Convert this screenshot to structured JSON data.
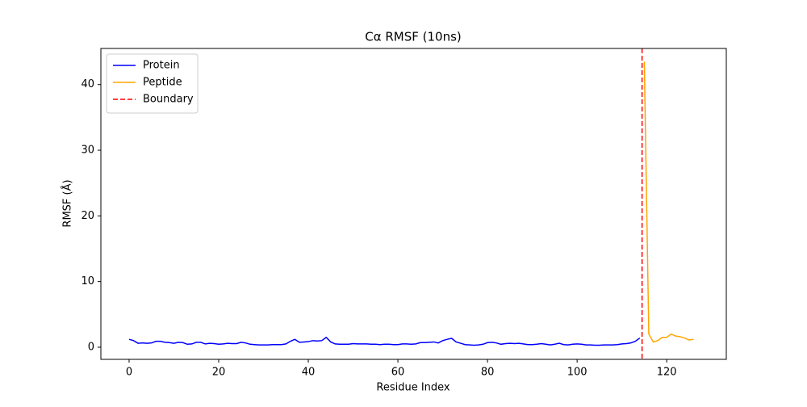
{
  "chart_data": {
    "type": "line",
    "title": "Cα RMSF (10ns)",
    "xlabel": "Residue Index",
    "ylabel": "RMSF (Å)",
    "xlim": [
      -6.3,
      133.3
    ],
    "xticks": [
      0,
      20,
      40,
      60,
      80,
      100,
      120
    ],
    "ylim": [
      -1.85,
      45.5
    ],
    "yticks": [
      0,
      10,
      20,
      30,
      40
    ],
    "legend": "upper left",
    "grid": false,
    "series": [
      {
        "name": "Protein",
        "color": "#0000ff",
        "x": [
          0,
          1,
          2,
          3,
          4,
          5,
          6,
          7,
          8,
          9,
          10,
          11,
          12,
          13,
          14,
          15,
          16,
          17,
          18,
          19,
          20,
          21,
          22,
          23,
          24,
          25,
          26,
          27,
          28,
          29,
          30,
          31,
          32,
          33,
          34,
          35,
          36,
          37,
          38,
          39,
          40,
          41,
          42,
          43,
          44,
          45,
          46,
          47,
          48,
          49,
          50,
          51,
          52,
          53,
          54,
          55,
          56,
          57,
          58,
          59,
          60,
          61,
          62,
          63,
          64,
          65,
          66,
          67,
          68,
          69,
          70,
          71,
          72,
          73,
          74,
          75,
          76,
          77,
          78,
          79,
          80,
          81,
          82,
          83,
          84,
          85,
          86,
          87,
          88,
          89,
          90,
          91,
          92,
          93,
          94,
          95,
          96,
          97,
          98,
          99,
          100,
          101,
          102,
          103,
          104,
          105,
          106,
          107,
          108,
          109,
          110,
          111,
          112,
          113,
          114
        ],
        "values": [
          1.2,
          1.0,
          0.6,
          0.65,
          0.6,
          0.65,
          0.9,
          0.9,
          0.75,
          0.7,
          0.6,
          0.75,
          0.7,
          0.45,
          0.5,
          0.75,
          0.75,
          0.5,
          0.6,
          0.55,
          0.45,
          0.5,
          0.6,
          0.55,
          0.55,
          0.75,
          0.65,
          0.45,
          0.4,
          0.35,
          0.35,
          0.35,
          0.4,
          0.4,
          0.4,
          0.5,
          0.9,
          1.2,
          0.75,
          0.8,
          0.85,
          1.0,
          0.95,
          1.0,
          1.5,
          0.8,
          0.5,
          0.45,
          0.45,
          0.45,
          0.55,
          0.5,
          0.5,
          0.5,
          0.45,
          0.45,
          0.4,
          0.45,
          0.45,
          0.4,
          0.4,
          0.5,
          0.5,
          0.45,
          0.5,
          0.7,
          0.7,
          0.75,
          0.8,
          0.65,
          1.0,
          1.2,
          1.35,
          0.8,
          0.6,
          0.4,
          0.35,
          0.3,
          0.35,
          0.45,
          0.7,
          0.75,
          0.65,
          0.45,
          0.55,
          0.6,
          0.55,
          0.6,
          0.5,
          0.4,
          0.4,
          0.45,
          0.55,
          0.45,
          0.35,
          0.45,
          0.6,
          0.4,
          0.35,
          0.45,
          0.5,
          0.45,
          0.35,
          0.35,
          0.3,
          0.3,
          0.35,
          0.35,
          0.35,
          0.4,
          0.5,
          0.55,
          0.65,
          0.9,
          1.4
        ]
      },
      {
        "name": "Peptide",
        "color": "#ffa500",
        "x": [
          115,
          116,
          117,
          118,
          119,
          120,
          121,
          122,
          123,
          124,
          125,
          126
        ],
        "values": [
          43.5,
          2.0,
          0.8,
          1.0,
          1.5,
          1.5,
          2.0,
          1.7,
          1.6,
          1.4,
          1.1,
          1.2
        ]
      }
    ],
    "vlines": [
      {
        "name": "Boundary",
        "color": "#ff0000",
        "x": 114.5,
        "dashed": true
      }
    ]
  }
}
